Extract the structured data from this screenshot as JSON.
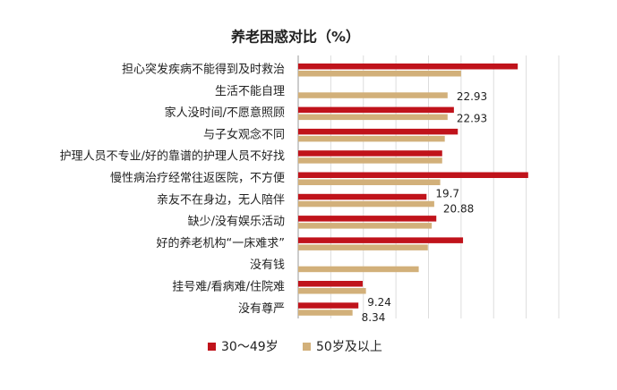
{
  "chart_data": {
    "type": "barh",
    "title": "养老困惑对比（%）",
    "categories": [
      "担心突发疾病不能得到及时救治",
      "生活不能自理",
      "家人没时间/不愿意照顾",
      "与子女观念不同",
      "护理人员不专业/好的靠谱的护理人员不好找",
      "慢性病治疗经常往返医院，不方便",
      "亲友不在身边，无人陪伴",
      "缺少/没有娱乐活动",
      "好的养老机构“一床难求”",
      "没有钱",
      "挂号难/看病难/住院难",
      "没有尊严"
    ],
    "series": [
      {
        "name": "30～49岁",
        "color": "#c0131b",
        "values": [
          33.7,
          null,
          23.9,
          24.5,
          22.1,
          35.3,
          19.7,
          21.2,
          25.3,
          null,
          9.9,
          9.24
        ],
        "value_labels": [
          null,
          null,
          null,
          null,
          null,
          null,
          "19.7",
          null,
          null,
          null,
          null,
          "9.24"
        ]
      },
      {
        "name": "50岁及以上",
        "color": "#d2b07a",
        "values": [
          25.0,
          22.93,
          22.93,
          22.5,
          22.1,
          21.8,
          20.88,
          20.5,
          19.9,
          18.5,
          10.4,
          8.34
        ],
        "value_labels": [
          null,
          "22.93",
          "22.93",
          null,
          null,
          null,
          "20.88",
          null,
          null,
          null,
          null,
          "8.34"
        ]
      }
    ],
    "xlim": [
      0,
      40
    ],
    "xticks": [
      0,
      5,
      10,
      15,
      20,
      25,
      30,
      35,
      40
    ],
    "grid": true
  }
}
